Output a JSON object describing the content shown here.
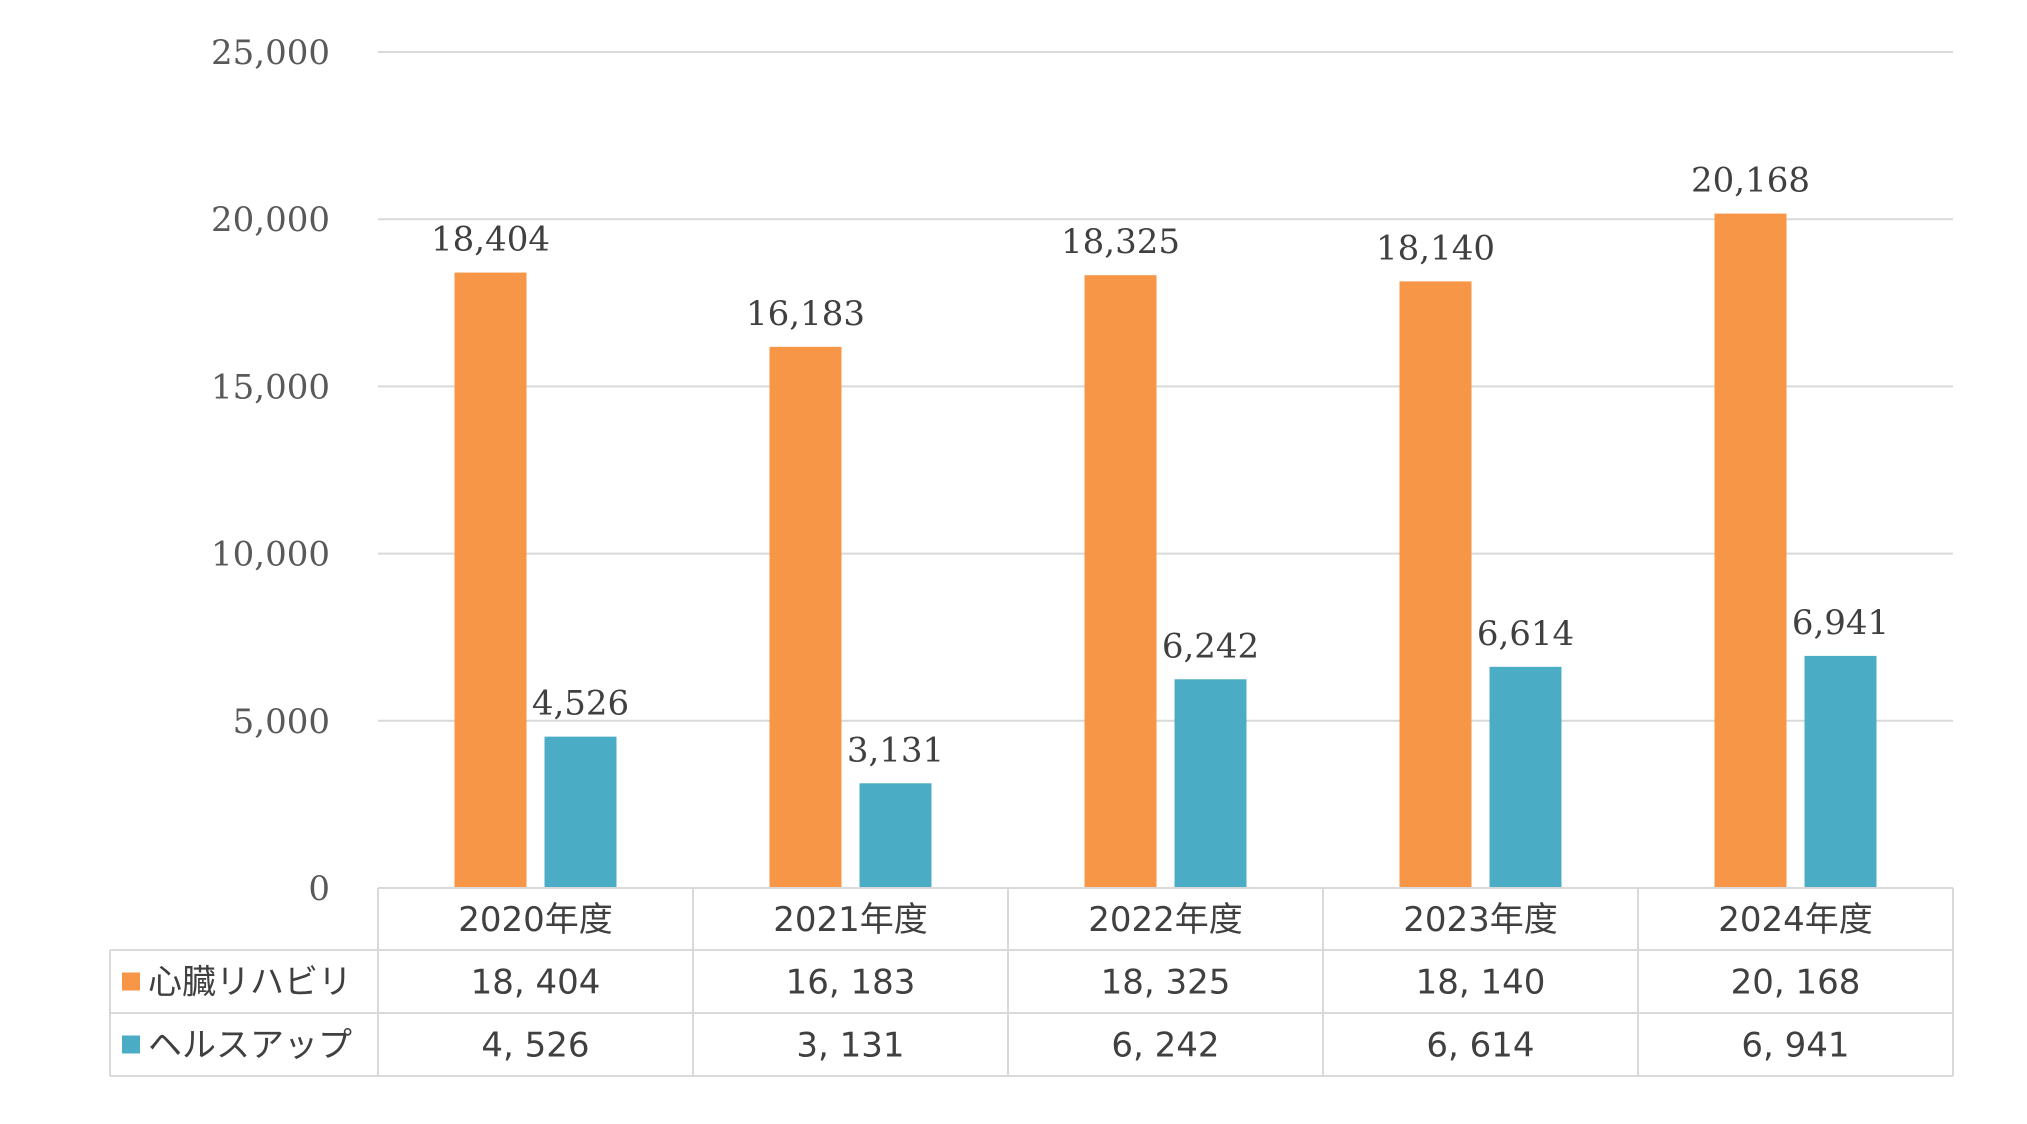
{
  "chart_data": {
    "type": "bar",
    "categories": [
      "2020年度",
      "2021年度",
      "2022年度",
      "2023年度",
      "2024年度"
    ],
    "series": [
      {
        "name": "心臓リハビリ",
        "color": "#F79646",
        "values": [
          18404,
          16183,
          18325,
          18140,
          20168
        ],
        "value_labels": [
          "18,404",
          "16,183",
          "18,325",
          "18,140",
          "20,168"
        ],
        "table_labels": [
          "18, 404",
          "16, 183",
          "18, 325",
          "18, 140",
          "20, 168"
        ]
      },
      {
        "name": "ヘルスアップ",
        "color": "#4BACC6",
        "values": [
          4526,
          3131,
          6242,
          6614,
          6941
        ],
        "value_labels": [
          "4,526",
          "3,131",
          "6,242",
          "6,614",
          "6,941"
        ],
        "table_labels": [
          "4, 526",
          "3, 131",
          "6, 242",
          "6, 614",
          "6, 941"
        ]
      }
    ],
    "ylim": [
      0,
      25000
    ],
    "yticks": [
      0,
      5000,
      10000,
      15000,
      20000,
      25000
    ],
    "ytick_labels": [
      "0",
      "5,000",
      "10,000",
      "15,000",
      "20,000",
      "25,000"
    ],
    "grid": true,
    "data_table": true,
    "title": "",
    "xlabel": "",
    "ylabel": ""
  }
}
